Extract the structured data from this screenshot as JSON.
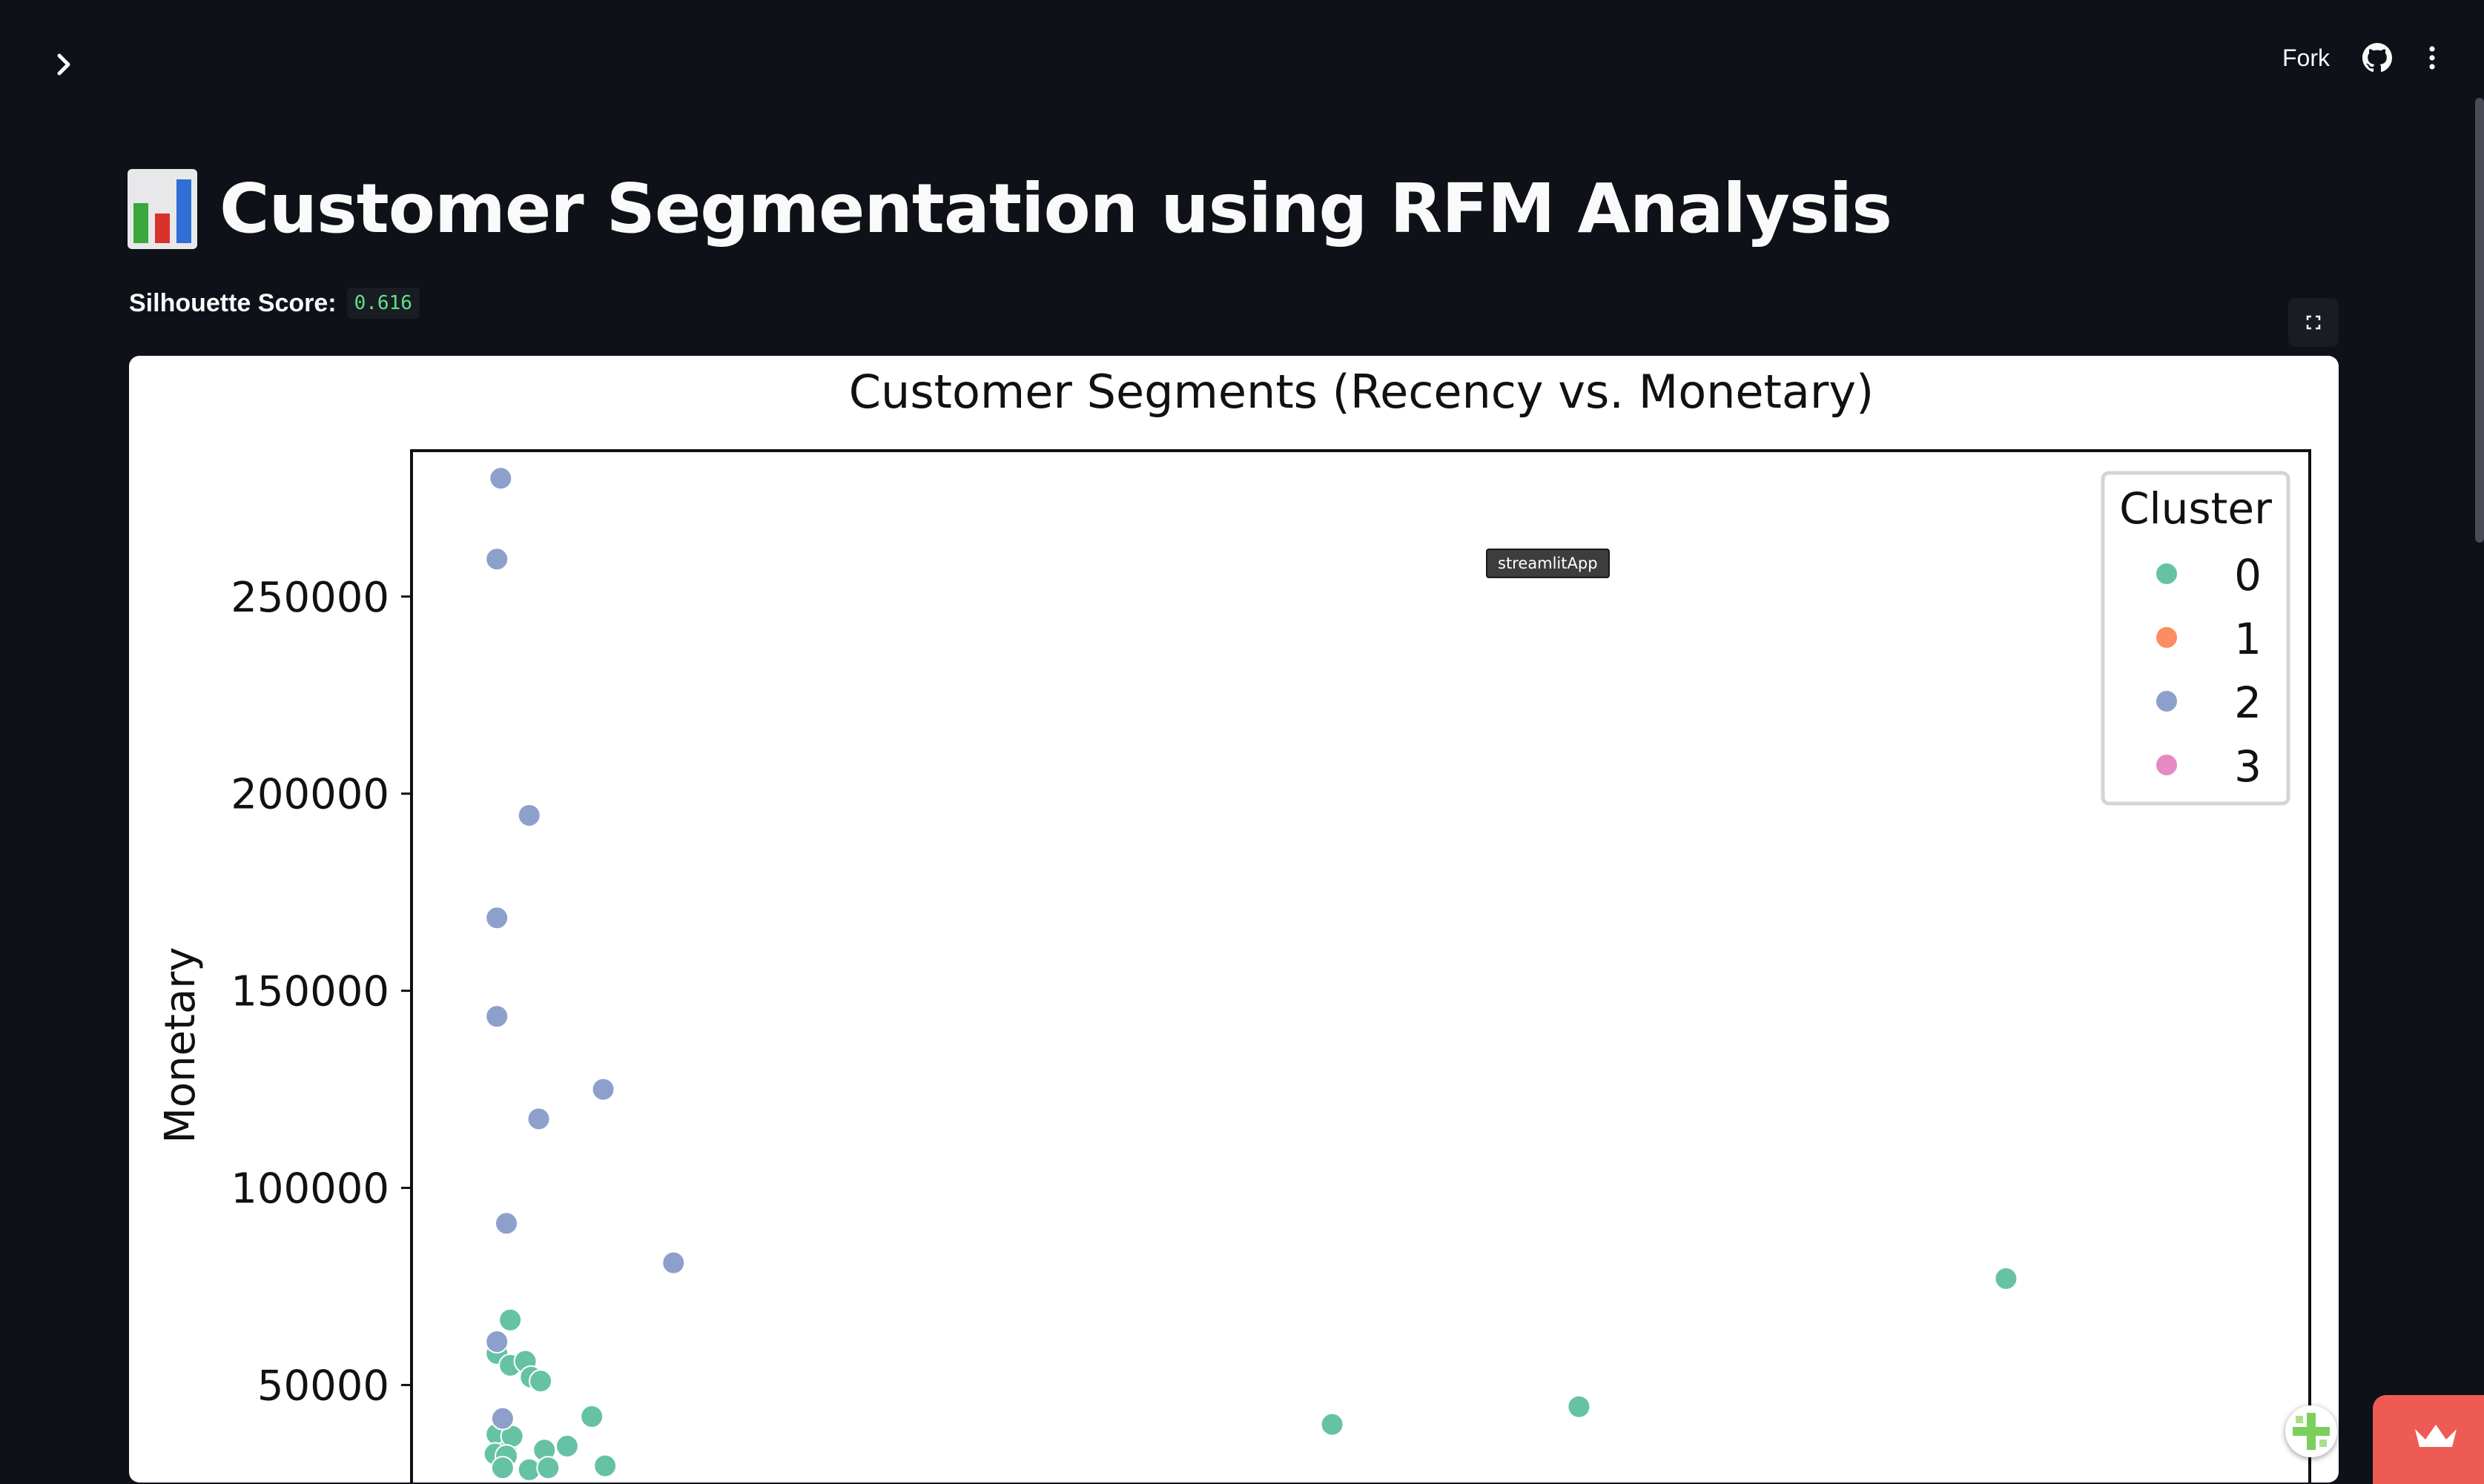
{
  "header": {
    "fork_label": "Fork",
    "sidebar_icon": "chevron-right-icon",
    "github_icon": "github-icon",
    "menu_icon": "more-vertical-icon"
  },
  "main": {
    "title_emoji": "bar-chart-icon",
    "title": "Customer Segmentation using RFM Analysis",
    "silhouette_label": "Silhouette Score:",
    "silhouette_value": "0.616"
  },
  "tooltip": "streamlitApp",
  "chart_data": {
    "type": "scatter",
    "title": "Customer Segments (Recency vs. Monetary)",
    "xlabel": "",
    "ylabel": "Monetary",
    "ylim": [
      20000,
      287000
    ],
    "xlim": [
      0,
      100
    ],
    "yticks": [
      50000,
      100000,
      150000,
      200000,
      250000
    ],
    "grid": false,
    "legend": {
      "title": "Cluster",
      "position": "top-right",
      "entries": [
        "0",
        "1",
        "2",
        "3"
      ]
    },
    "colors": {
      "0": "#66c2a5",
      "1": "#fc8d62",
      "2": "#8da0cb",
      "3": "#e78ac3"
    },
    "series": [
      {
        "name": "0",
        "points": [
          [
            5.2,
            66500
          ],
          [
            4.5,
            58000
          ],
          [
            5.2,
            55000
          ],
          [
            6.0,
            56000
          ],
          [
            6.3,
            52000
          ],
          [
            6.8,
            51000
          ],
          [
            4.5,
            37500
          ],
          [
            5.0,
            33000
          ],
          [
            5.3,
            37000
          ],
          [
            4.4,
            32500
          ],
          [
            5.0,
            32000
          ],
          [
            7.0,
            33500
          ],
          [
            8.2,
            34500
          ],
          [
            9.5,
            42000
          ],
          [
            10.2,
            29500
          ],
          [
            4.8,
            29000
          ],
          [
            6.2,
            28500
          ],
          [
            7.2,
            29000
          ],
          [
            48.5,
            40000
          ],
          [
            61.5,
            44500
          ],
          [
            84.0,
            77000
          ]
        ]
      },
      {
        "name": "2",
        "points": [
          [
            4.7,
            280000
          ],
          [
            4.5,
            259500
          ],
          [
            6.2,
            194500
          ],
          [
            4.5,
            168500
          ],
          [
            4.5,
            143500
          ],
          [
            10.1,
            125000
          ],
          [
            6.7,
            117500
          ],
          [
            5.0,
            91000
          ],
          [
            13.8,
            81000
          ],
          [
            4.5,
            61000
          ],
          [
            4.8,
            41500
          ]
        ]
      }
    ]
  }
}
